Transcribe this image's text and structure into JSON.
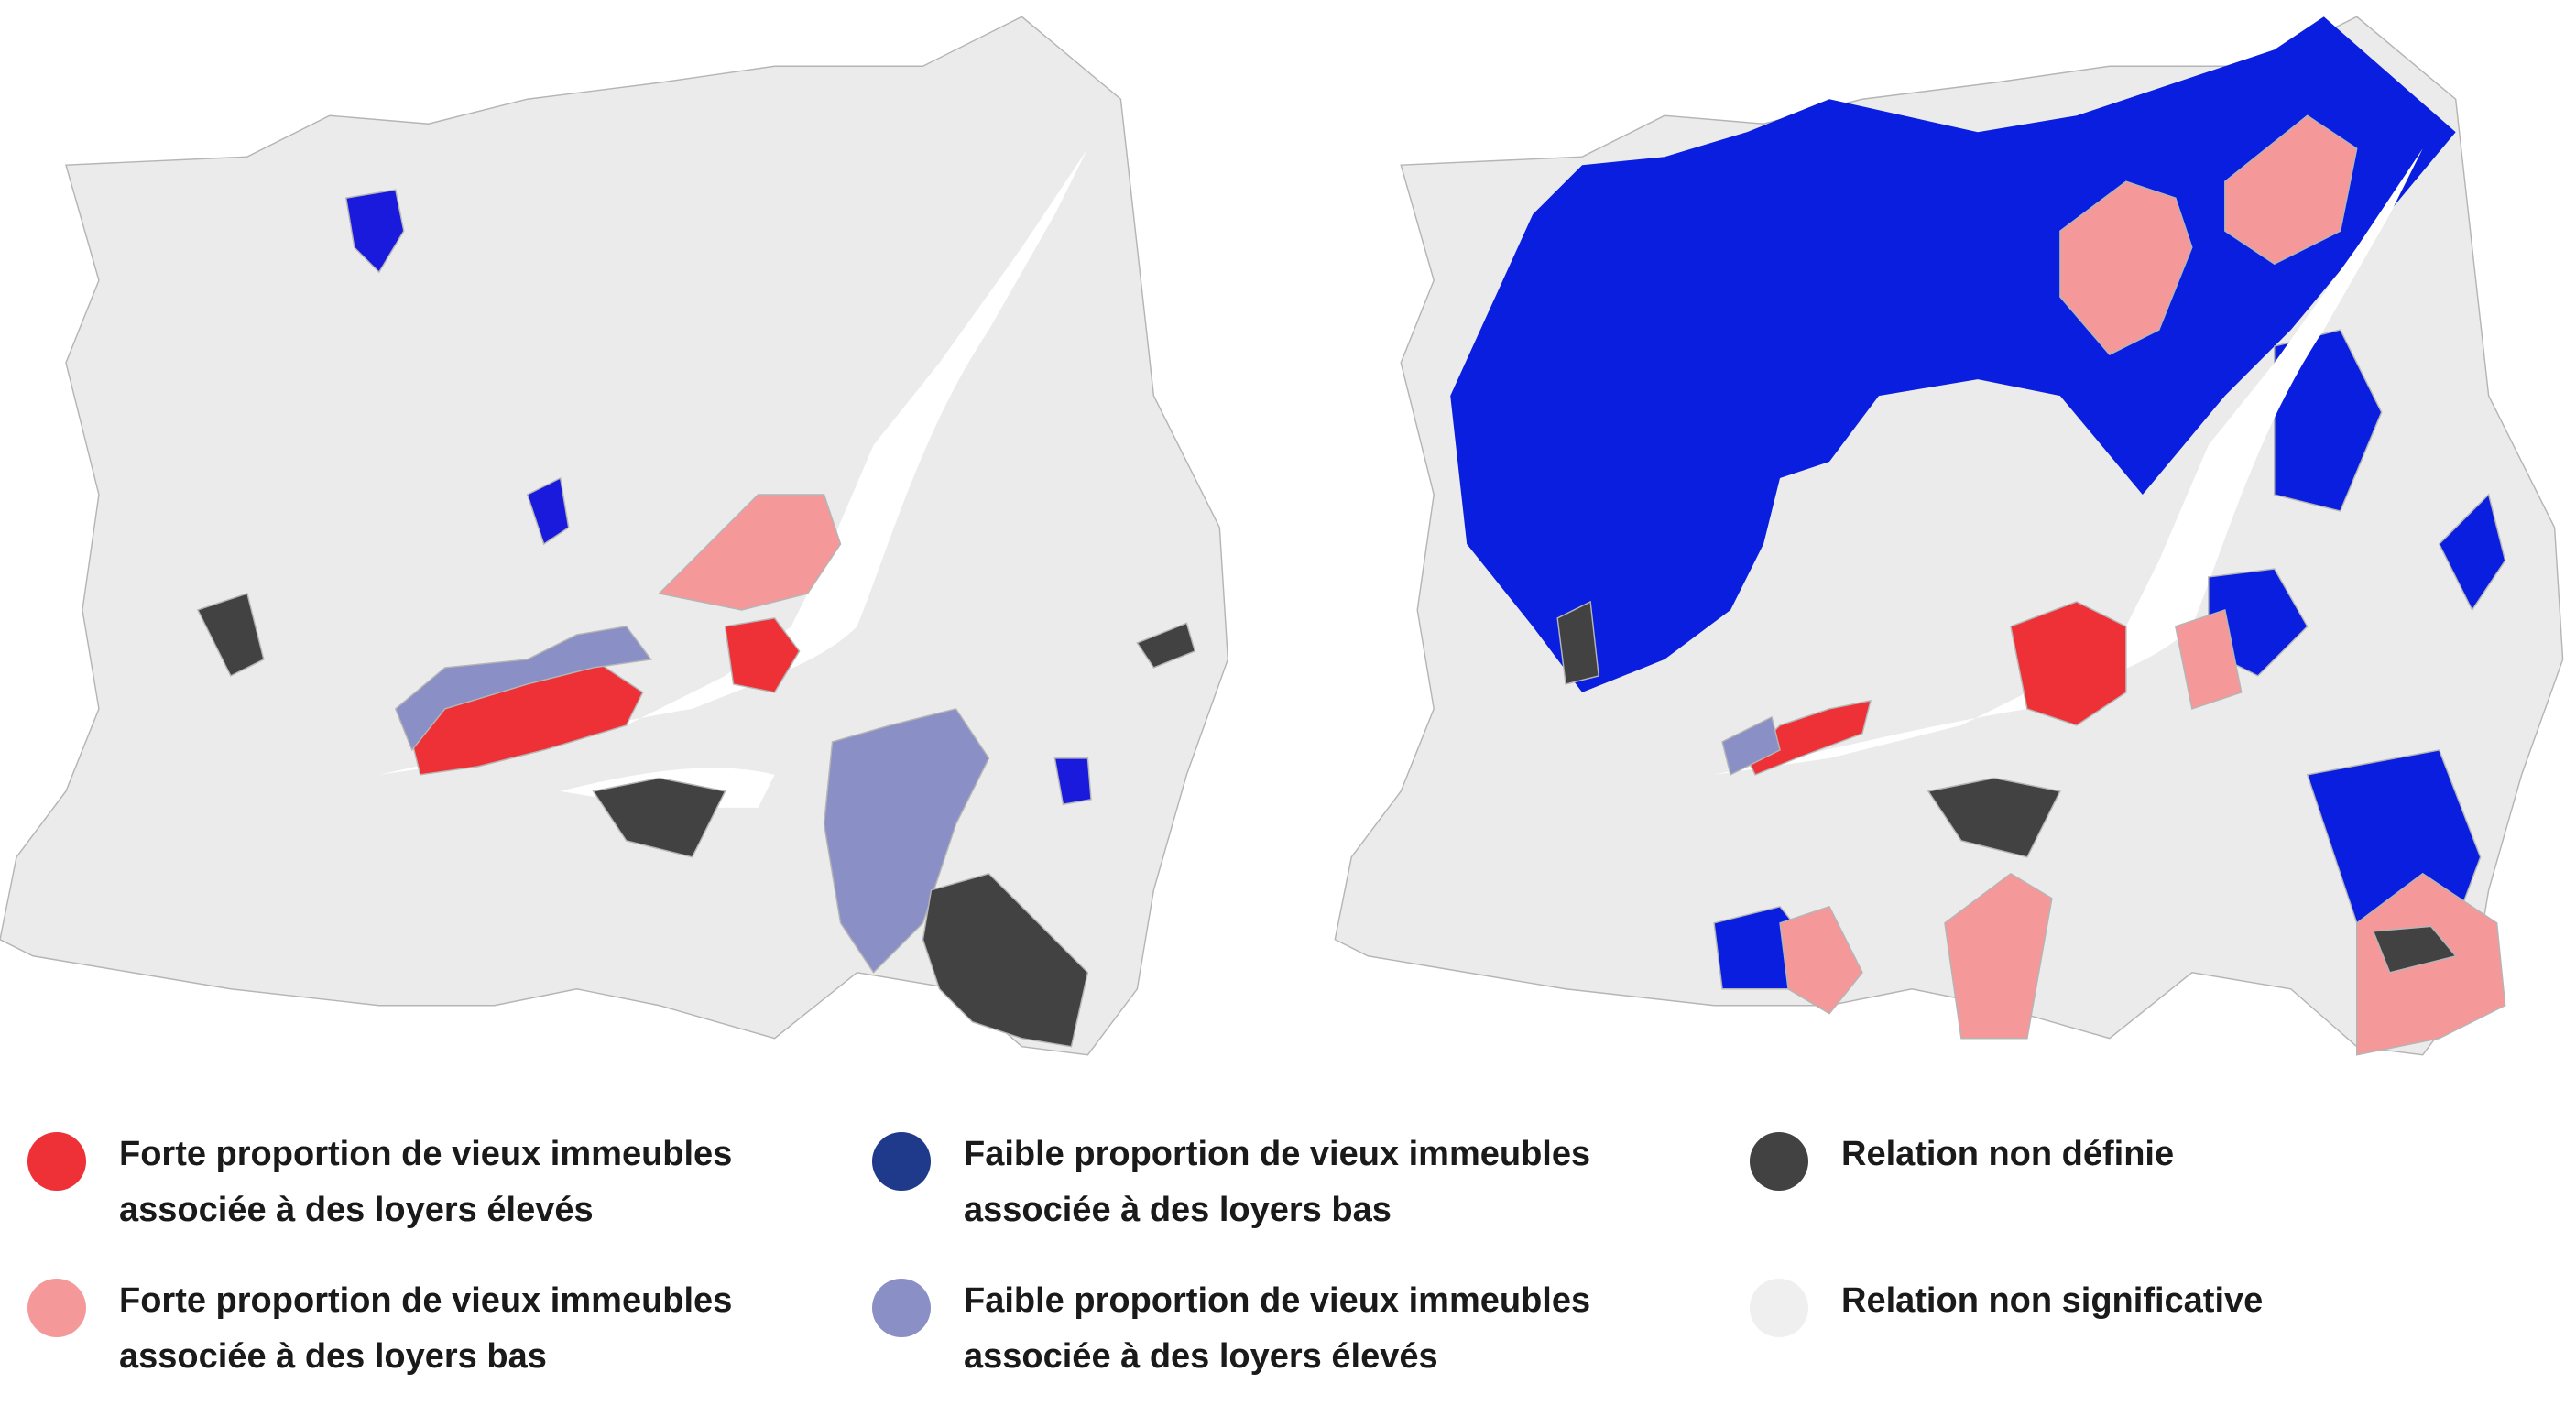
{
  "legend": {
    "items": [
      {
        "lines": [
          "Forte proportion de vieux immeubles",
          "associée à des loyers élevés"
        ],
        "color": "#ee3136"
      },
      {
        "lines": [
          "Faible proportion de vieux immeubles",
          "associée à des loyers bas"
        ],
        "color": "#1f3a8a"
      },
      {
        "lines": [
          "Relation non définie"
        ],
        "color": "#424242"
      },
      {
        "lines": [
          "Forte proportion de vieux immeubles",
          "associée à des loyers bas"
        ],
        "color": "#f4989a"
      },
      {
        "lines": [
          "Faible proportion de vieux immeubles",
          "associée à des loyers élevés"
        ],
        "color": "#8a8fc6"
      },
      {
        "lines": [
          "Relation non significative"
        ],
        "color": "#efefef"
      }
    ]
  }
}
